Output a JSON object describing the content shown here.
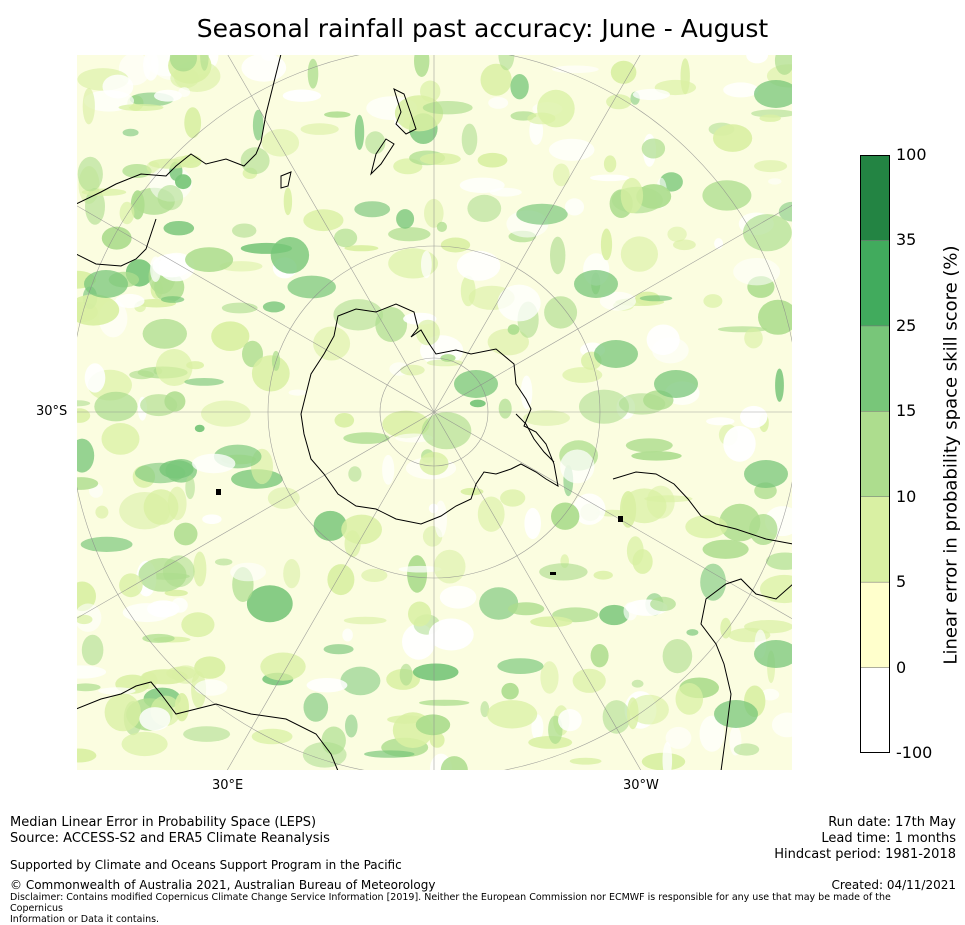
{
  "title": "Seasonal rainfall past accuracy: June - August",
  "map": {
    "projection": "south polar stereographic",
    "graticule_labels": {
      "lat": "30°S",
      "lon_left": "30°E",
      "lon_right": "30°W"
    },
    "features": [
      "Antarctica",
      "Australia",
      "New Zealand",
      "South America",
      "Southern Africa"
    ]
  },
  "colorbar": {
    "label": "Linear error in probability space skill score (%)",
    "ticks": [
      "100",
      "35",
      "25",
      "15",
      "10",
      "5",
      "0",
      "-100"
    ],
    "colors": [
      "#ffffff",
      "#ffffcc",
      "#d9f0a3",
      "#addd8e",
      "#78c679",
      "#41ab5d",
      "#238443"
    ]
  },
  "footer": {
    "left_line1": "Median Linear Error in Probability Space (LEPS)",
    "left_line2": "Source: ACCESS-S2 and ERA5 Climate Reanalysis",
    "support": "Supported by Climate and Oceans Support Program in the Pacific",
    "copyright": "© Commonwealth of Australia 2021, Australian Bureau of Meteorology",
    "disclaimer1": "Disclaimer: Contains modified Copernicus Climate Change Service Information [2019]. Neither the European Commission nor ECMWF is responsible for any use that may be made of the Copernicus",
    "disclaimer2": "Information or Data it contains.",
    "run_date": "Run date: 17th May",
    "lead_time": "Lead time: 1 months",
    "hindcast": "Hindcast period: 1981-2018",
    "created": "Created: 04/11/2021"
  }
}
